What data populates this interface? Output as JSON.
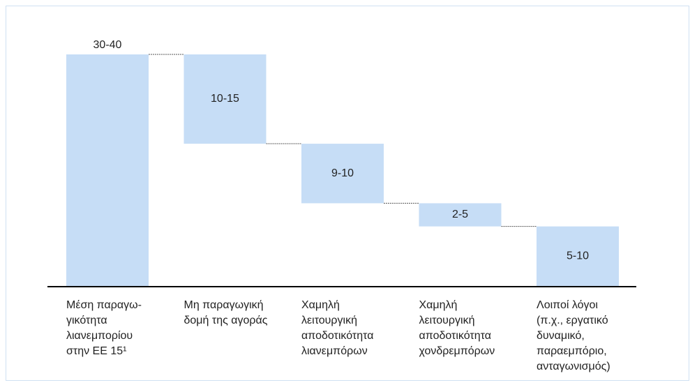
{
  "chart_data": {
    "type": "waterfall",
    "categories": [
      "Μέση παραγω-\nγικότητα\nλιανεμπορίου\nστην ΕΕ 15¹",
      "Μη παραγωγική\nδομή της αγοράς",
      "Χαμηλή\nλειτουργική\nαποδοτικότητα\nλιανεμπόρων",
      "Χαμηλή\nλειτουργική\nαποδοτικότητα\nχονδρεμπόρων",
      "Λοιποί λόγοι\n(π.χ., εργατικό\nδυναμικό,\nπαραεμπόριο,\nανταγωνισμός)"
    ],
    "values": [
      35,
      13.5,
      9,
      3.5,
      9
    ],
    "value_labels": [
      "30-40",
      "10-15",
      "9-10",
      "2-5",
      "5-10"
    ],
    "color": "#c6ddf6"
  }
}
